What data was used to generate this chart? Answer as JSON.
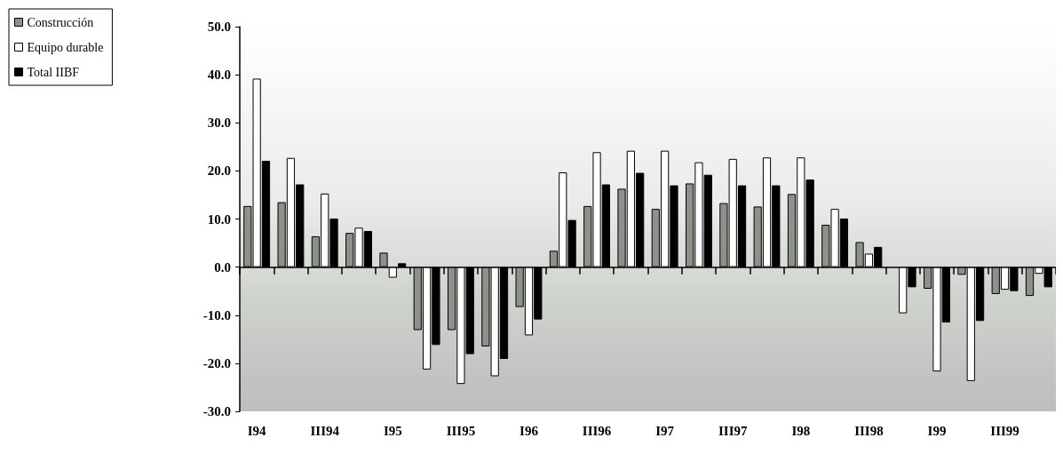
{
  "chart_data": {
    "type": "bar",
    "categories": [
      "I94",
      null,
      "III94",
      null,
      "I95",
      null,
      "III95",
      null,
      "I96",
      null,
      "III96",
      null,
      "I97",
      null,
      "III97",
      null,
      "I98",
      null,
      "III98",
      null,
      "I99",
      null,
      "III99",
      null
    ],
    "series": [
      {
        "name": "Construcción",
        "color": "#8c9189",
        "values": [
          12.7,
          13.5,
          6.4,
          7.1,
          3.0,
          -13.1,
          -13.1,
          -16.5,
          -8.3,
          3.4,
          12.7,
          16.3,
          12.1,
          17.4,
          13.3,
          12.6,
          15.2,
          8.8,
          5.2,
          null,
          -4.5,
          -1.6,
          -5.6,
          -6.0
        ]
      },
      {
        "name": "Equipo durable",
        "color": "#ffffff",
        "values": [
          39.2,
          22.7,
          15.3,
          8.2,
          -2.2,
          -21.3,
          -24.3,
          -22.7,
          -14.2,
          19.7,
          23.9,
          24.2,
          24.2,
          21.8,
          22.5,
          22.8,
          22.8,
          12.1,
          2.8,
          -9.6,
          -21.7,
          -23.7,
          -4.7,
          -1.4
        ]
      },
      {
        "name": "Total IIBF",
        "color": "#000000",
        "values": [
          22.1,
          17.2,
          10.1,
          7.5,
          0.8,
          -16.2,
          -18.1,
          -19.1,
          -10.9,
          9.8,
          17.2,
          19.6,
          17.0,
          19.2,
          17.0,
          17.0,
          18.2,
          10.1,
          4.2,
          -4.2,
          -11.5,
          -11.2,
          -5.0,
          -4.2
        ]
      }
    ],
    "ylim": [
      -30,
      50
    ],
    "yticks": [
      {
        "value": -30,
        "label": "-30.0"
      },
      {
        "value": -20,
        "label": "-20.0"
      },
      {
        "value": -10,
        "label": "-10.0"
      },
      {
        "value": 0,
        "label": "0.0"
      },
      {
        "value": 10,
        "label": "10.0"
      },
      {
        "value": 20,
        "label": "20.0"
      },
      {
        "value": 30,
        "label": "30.0"
      },
      {
        "value": 40,
        "label": "40.0"
      },
      {
        "value": 50,
        "label": "50.0"
      }
    ],
    "legend": "top left"
  }
}
